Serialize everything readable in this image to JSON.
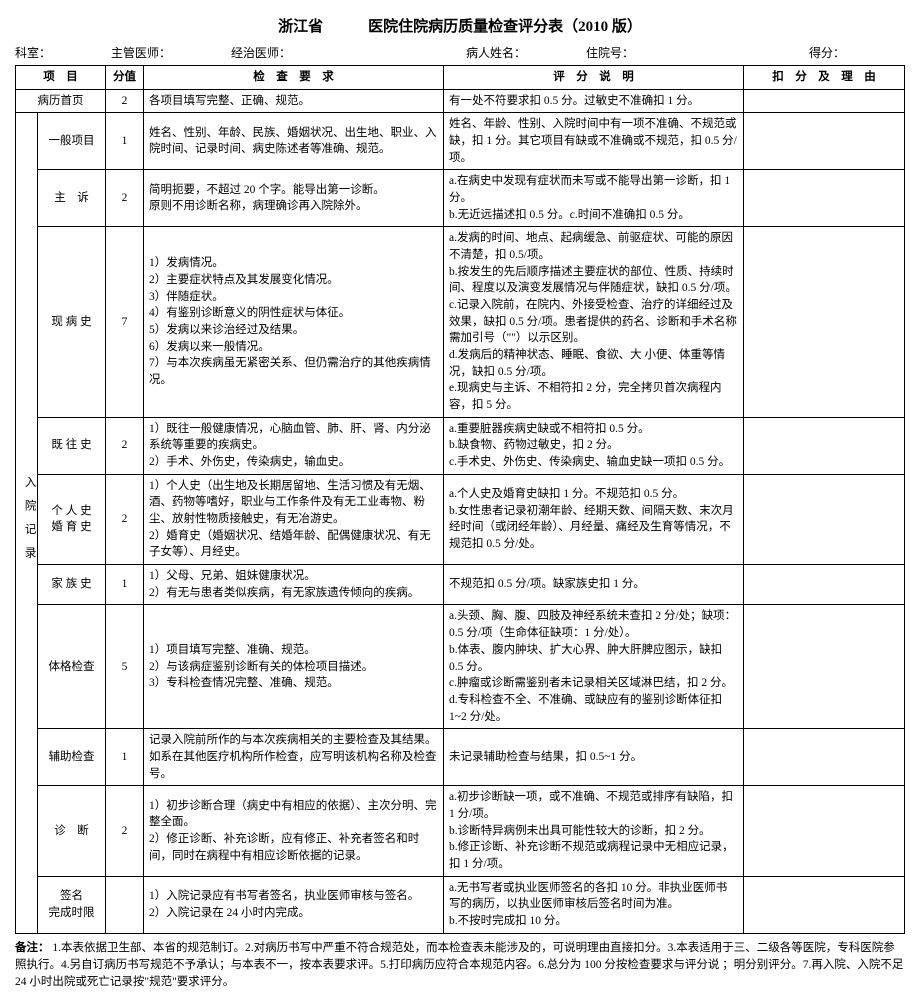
{
  "title": "浙江省　　　医院住院病历质量检查评分表（2010 版）",
  "header": {
    "dept": "科室：",
    "chief": "主管医师：",
    "attending": "经治医师：",
    "patient": "病人姓名：",
    "admno": "住院号：",
    "score": "得分："
  },
  "thead": {
    "item": "项　目",
    "value": "分值",
    "req": "检　查　要　求",
    "desc": "评　分　说　明",
    "ded": "扣　分　及　理　由"
  },
  "category": "入院记录",
  "rows": [
    {
      "item": "病历首页",
      "score": "2",
      "req": "各项目填写完整、正确、规范。",
      "desc": "有一处不符要求扣 0.5 分。过敏史不准确扣 1 分。"
    },
    {
      "item": "一般项目",
      "score": "1",
      "req": "姓名、性别、年龄、民族、婚姻状况、出生地、职业、入院时间、记录时间、病史陈述者等准确、规范。",
      "desc": "姓名、年龄、性别、入院时间中有一项不准确、不规范或缺，扣 1 分。其它项目有缺或不准确或不规范，扣 0.5 分/项。"
    },
    {
      "item": "主　诉",
      "score": "2",
      "req": "简明扼要，不超过 20 个字。能导出第一诊断。\n原则不用诊断名称，病理确诊再入院除外。",
      "desc": "a.在病史中发现有症状而未写或不能导出第一诊断，扣 1 分。\nb.无近远描述扣 0.5 分。c.时间不准确扣 0.5 分。"
    },
    {
      "item": "现 病 史",
      "score": "7",
      "req": "1）发病情况。\n2）主要症状特点及其发展变化情况。\n3）伴随症状。\n4）有鉴别诊断意义的阴性症状与体征。\n5）发病以来诊治经过及结果。\n6）发病以来一般情况。\n7）与本次疾病虽无紧密关系、但仍需治疗的其他疾病情况。",
      "desc": "a.发病的时间、地点、起病缓急、前驱症状、可能的原因不清楚，扣 0.5/项。\nb.按发生的先后顺序描述主要症状的部位、性质、持续时间、程度以及演变发展情况与伴随症状，缺扣 0.5 分/项。\nc.记录入院前，在院内、外接受检查、治疗的详细经过及效果，缺扣 0.5 分/项。患者提供的药名、诊断和手术名称需加引号（\"\"）以示区别。\nd.发病后的精神状态、睡眠、食欲、大 小便、体重等情况，缺扣 0.5 分/项。\ne.现病史与主诉、不相符扣 2 分，完全拷贝首次病程内容，扣 5 分。"
    },
    {
      "item": "既 往 史",
      "score": "2",
      "req": "1）既往一般健康情况，心脑血管、肺、肝、肾、内分泌系统等重要的疾病史。\n2）手术、外伤史，传染病史，输血史。",
      "desc": "a.重要脏器疾病史缺或不相符扣 0.5 分。\nb.缺食物、药物过敏史，扣 2 分。\nc.手术史、外伤史、传染病史、输血史缺一项扣 0.5 分。"
    },
    {
      "item": "个 人 史\n婚 育 史",
      "score": "2",
      "req": "1）个人史（出生地及长期居留地、生活习惯及有无烟、酒、药物等嗜好，职业与工作条件及有无工业毒物、粉尘、放射性物质接触史，有无冶游史。\n2）婚育史（婚姻状况、结婚年龄、配偶健康状况、有无子女等）、月经史。",
      "desc": "a.个人史及婚育史缺扣 1 分。不规范扣 0.5 分。\nb.女性患者记录初潮年龄、经期天数、间隔天数、末次月经时间（或闭经年龄）、月经量、痛经及生育等情况，不规范扣 0.5 分/处。"
    },
    {
      "item": "家 族 史",
      "score": "1",
      "req": "1）父母、兄弟、姐妹健康状况。\n2）有无与患者类似疾病，有无家族遗传倾向的疾病。",
      "desc": "不规范扣 0.5 分/项。缺家族史扣 1 分。"
    },
    {
      "item": "体格检查",
      "score": "5",
      "req": "1）项目填写完整、准确、规范。\n2）与该病症鉴别诊断有关的体检项目描述。\n3）专科检查情况完整、准确、规范。",
      "desc": "a.头颈、胸、腹、四肢及神经系统未查扣 2 分/处；缺项：0.5 分/项（生命体征缺项：1 分/处）。\nb.体表、腹内肿块、扩大心界、肿大肝脾应图示，缺扣 0.5 分。\nc.肿瘤或诊断需鉴别者未记录相关区域淋巴结，扣 2 分。\nd.专科检查不全、不准确、或缺应有的鉴别诊断体征扣 1~2 分/处。"
    },
    {
      "item": "辅助检查",
      "score": "1",
      "req": "记录入院前所作的与本次疾病相关的主要检查及其结果。如系在其他医疗机构所作检查，应写明该机构名称及检查号。",
      "desc": "未记录辅助检查与结果，扣 0.5~1 分。"
    },
    {
      "item": "诊　断",
      "score": "2",
      "req": "1）初步诊断合理（病史中有相应的依据）、主次分明、完整全面。\n2）修正诊断、补充诊断，应有修正、补充者签名和时间，同时在病程中有相应诊断依据的记录。",
      "desc": "a.初步诊断缺一项，或不准确、不规范或排序有缺陷，扣 1 分/项。\nb.诊断特异病例未出具可能性较大的诊断，扣 2 分。\nb.修正诊断、补充诊断不规范或病程记录中无相应记录，扣 1 分/项。"
    },
    {
      "item": "签名\n完成时限",
      "score": "",
      "req": "1）入院记录应有书写者签名，执业医师审核与签名。\n2）入院记录在 24 小时内完成。",
      "desc": "a.无书写者或执业医师签名的各扣 10 分。非执业医师书写的病历，以执业医师审核后签名时间为准。\nb.不按时完成扣 10 分。"
    }
  ],
  "remarks_label": "备注：",
  "remarks": "1.本表依据卫生部、本省的规范制订。2.对病历书写中严重不符合规范处，而本检查表未能涉及的，可说明理由直接扣分。3.本表适用于三、二级各等医院，专科医院参照执行。4.另自订病历书写规范不予承认；与本表不一，按本表要求评。5.打印病历应符合本规范内容。6.总分为 100 分按检查要求与评分说 ；明分别评分。7.再入院、入院不足 24 小时出院或死亡记录按\"规范\"要求评分。"
}
